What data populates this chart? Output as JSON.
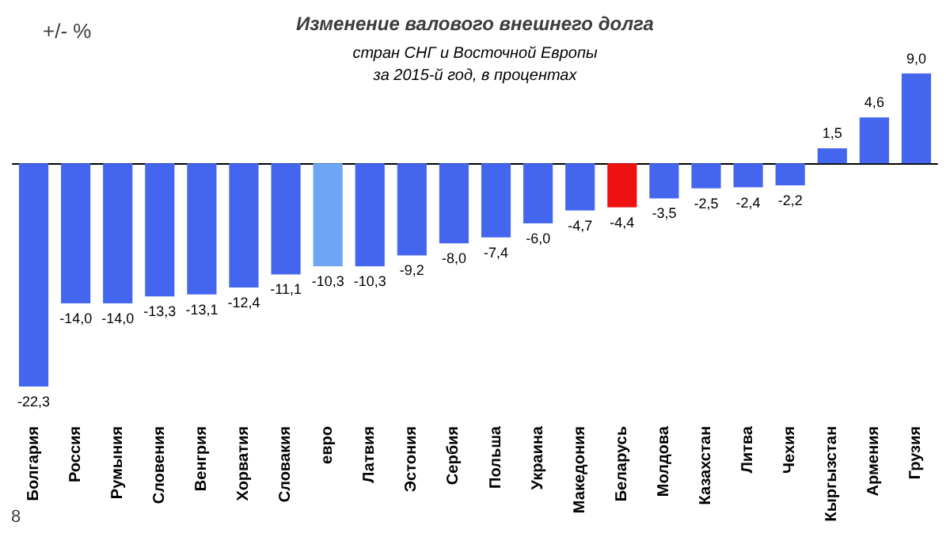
{
  "chart_data": {
    "type": "bar",
    "title": "Изменение валового внешнего долга",
    "subtitle": "стран СНГ и Восточной Европы\nза 2015-й год, в процентах",
    "ylabel": "+/- %",
    "categories": [
      "Болгария",
      "Россия",
      "Румыния",
      "Словения",
      "Венгрия",
      "Хорватия",
      "Словакия",
      "евро",
      "Латвия",
      "Эстония",
      "Сербия",
      "Польша",
      "Украина",
      "Македония",
      "Беларусь",
      "Молдова",
      "Казахстан",
      "Литва",
      "Чехия",
      "Кыргызстан",
      "Армения",
      "Грузия"
    ],
    "values": [
      -22.3,
      -14.0,
      -14.0,
      -13.3,
      -13.1,
      -12.4,
      -11.1,
      -10.3,
      -10.3,
      -9.2,
      -8.0,
      -7.4,
      -6.0,
      -4.7,
      -4.4,
      -3.5,
      -2.5,
      -2.4,
      -2.2,
      1.5,
      4.6,
      9.0
    ],
    "value_labels": [
      "-22,3",
      "-14,0",
      "-14,0",
      "-13,3",
      "-13,1",
      "-12,4",
      "-11,1",
      "-10,3",
      "-10,3",
      "-9,2",
      "-8,0",
      "-7,4",
      "-6,0",
      "-4,7",
      "-4,4",
      "-3,5",
      "-2,5",
      "-2,4",
      "-2,2",
      "1,5",
      "4,6",
      "9,0"
    ],
    "colors": [
      "#4466ee",
      "#4466ee",
      "#4466ee",
      "#4466ee",
      "#4466ee",
      "#4466ee",
      "#4466ee",
      "#6ea6f4",
      "#4466ee",
      "#4466ee",
      "#4466ee",
      "#4466ee",
      "#4466ee",
      "#4466ee",
      "#ee1111",
      "#4466ee",
      "#4466ee",
      "#4466ee",
      "#4466ee",
      "#4466ee",
      "#4466ee",
      "#4466ee"
    ],
    "annotations": [
      "8"
    ]
  }
}
